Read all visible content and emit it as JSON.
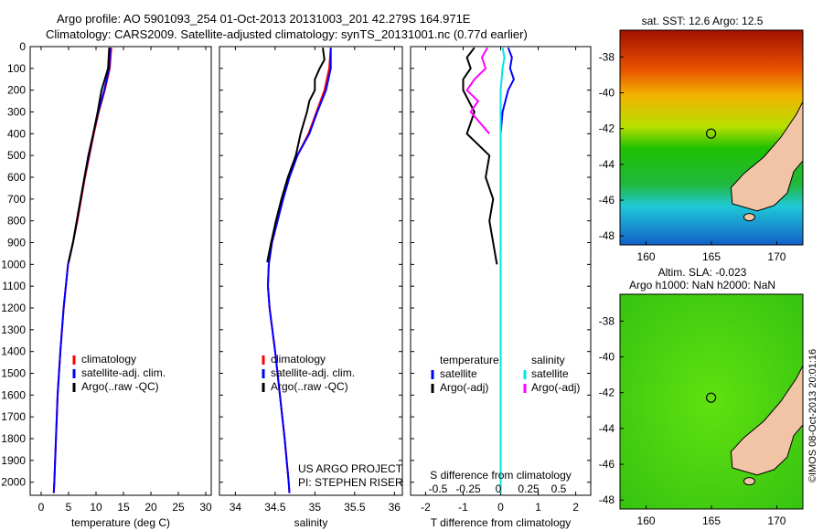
{
  "header": {
    "line1": "Argo profile: AO 5901093_254 01-Oct-2013 20131003_201 42.279S 164.971E",
    "line2": "Climatology: CARS2009. Satellite-adjusted climatology: synTS_20131001.nc (0.77d earlier)"
  },
  "chart_data": [
    {
      "type": "line",
      "name": "temperature",
      "xlabel": "temperature (deg C)",
      "ylabel": "",
      "xlim": [
        -2,
        31
      ],
      "ylim": [
        0,
        2060
      ],
      "x_ticks": [
        "0",
        "5",
        "10",
        "15",
        "20",
        "25",
        "30"
      ],
      "x_tick_values": [
        0,
        5,
        10,
        15,
        20,
        25,
        30
      ],
      "y_ticks": [
        "0",
        "100",
        "200",
        "300",
        "400",
        "500",
        "600",
        "700",
        "800",
        "900",
        "1000",
        "1100",
        "1200",
        "1300",
        "1400",
        "1500",
        "1600",
        "1700",
        "1800",
        "1900",
        "2000"
      ],
      "y_tick_values": [
        0,
        100,
        200,
        300,
        400,
        500,
        600,
        700,
        800,
        900,
        1000,
        1100,
        1200,
        1300,
        1400,
        1500,
        1600,
        1700,
        1800,
        1900,
        2000
      ],
      "series": [
        {
          "name": "climatology",
          "color": "#ff0000",
          "depth": [
            5,
            100,
            200,
            300,
            400,
            500,
            600,
            700,
            800,
            900,
            1000,
            1200,
            1400,
            1600,
            1800,
            2000,
            2050
          ],
          "values": [
            12.8,
            12.5,
            11.6,
            10.5,
            9.6,
            8.8,
            8.0,
            7.3,
            6.6,
            5.8,
            4.9,
            4.1,
            3.5,
            3.0,
            2.7,
            2.4,
            2.3
          ]
        },
        {
          "name": "satellite-adj. clim.",
          "color": "#0000ff",
          "depth": [
            5,
            100,
            200,
            300,
            400,
            500,
            600,
            700,
            800,
            900,
            1000,
            1200,
            1400,
            1600,
            1800,
            2000,
            2050
          ],
          "values": [
            12.6,
            12.4,
            11.5,
            10.4,
            9.5,
            8.7,
            7.9,
            7.2,
            6.5,
            5.8,
            4.9,
            4.1,
            3.5,
            3.0,
            2.7,
            2.4,
            2.3
          ]
        },
        {
          "name": "Argo(..raw -QC)",
          "color": "#000000",
          "depth": [
            5,
            100,
            150,
            200,
            300,
            400,
            500,
            600,
            700,
            800,
            900,
            990
          ],
          "values": [
            12.4,
            12.2,
            11.6,
            11.0,
            10.3,
            9.5,
            8.6,
            7.9,
            7.2,
            6.5,
            5.8,
            5.0
          ]
        }
      ],
      "legend": [
        "climatology",
        "satellite-adj. clim.",
        "Argo(..raw -QC)"
      ]
    },
    {
      "type": "line",
      "name": "salinity",
      "xlabel": "salinity",
      "xlim": [
        33.8,
        36.1
      ],
      "ylim": [
        0,
        2060
      ],
      "x_ticks": [
        "34",
        "34.5",
        "35",
        "35.5",
        "36"
      ],
      "x_tick_values": [
        34,
        34.5,
        35,
        35.5,
        36
      ],
      "series": [
        {
          "name": "climatology",
          "color": "#ff0000",
          "depth": [
            5,
            100,
            200,
            300,
            400,
            500,
            600,
            700,
            800,
            900,
            1000,
            1100,
            1200,
            1400,
            1600,
            1800,
            2000,
            2050
          ],
          "values": [
            35.2,
            35.18,
            35.12,
            35.02,
            34.92,
            34.78,
            34.68,
            34.6,
            34.53,
            34.46,
            34.42,
            34.41,
            34.43,
            34.5,
            34.56,
            34.62,
            34.67,
            34.68
          ]
        },
        {
          "name": "satellite-adj. clim.",
          "color": "#0000ff",
          "depth": [
            5,
            100,
            200,
            300,
            400,
            500,
            600,
            700,
            800,
            900,
            1000,
            1100,
            1200,
            1400,
            1600,
            1800,
            2000,
            2050
          ],
          "values": [
            35.2,
            35.2,
            35.14,
            35.03,
            34.93,
            34.78,
            34.68,
            34.6,
            34.53,
            34.46,
            34.42,
            34.41,
            34.43,
            34.5,
            34.56,
            34.62,
            34.67,
            34.68
          ]
        },
        {
          "name": "Argo(..raw -QC)",
          "color": "#000000",
          "depth": [
            5,
            60,
            100,
            150,
            200,
            250,
            300,
            400,
            500,
            600,
            700,
            800,
            900,
            990
          ],
          "values": [
            35.1,
            35.12,
            35.06,
            35.0,
            35.0,
            34.93,
            34.9,
            34.82,
            34.76,
            34.66,
            34.58,
            34.51,
            34.45,
            34.4
          ]
        }
      ],
      "legend": [
        "climatology",
        "satellite-adj. clim.",
        "Argo(..raw -QC)"
      ],
      "annotation": [
        "US ARGO PROJECT",
        "PI: STEPHEN RISER"
      ]
    },
    {
      "type": "line",
      "name": "difference",
      "xlabel": "T difference from climatology",
      "xlabel_top": "S difference from climatology",
      "xlim": [
        -2.4,
        2.4
      ],
      "ylim": [
        0,
        2060
      ],
      "x_ticks": [
        "-2",
        "-1",
        "0",
        "1",
        "2"
      ],
      "x_tick_values": [
        -2,
        -1,
        0,
        1,
        2
      ],
      "s_ticks": [
        "-0.5",
        "-0.25",
        "0",
        "0.25",
        "0.5"
      ],
      "series": [
        {
          "name": "satellite T",
          "color": "#0000ff",
          "depth": [
            5,
            50,
            100,
            150,
            200,
            300,
            400,
            600,
            1000,
            2050
          ],
          "values": [
            0.2,
            0.3,
            0.25,
            0.35,
            0.2,
            0.05,
            0.0,
            0.0,
            0.0,
            0.0
          ]
        },
        {
          "name": "Argo(-adj) T",
          "color": "#000000",
          "depth": [
            5,
            50,
            100,
            150,
            200,
            300,
            400,
            500,
            600,
            700,
            800,
            900,
            1000
          ],
          "values": [
            -0.7,
            -0.9,
            -0.8,
            -1.0,
            -1.0,
            -0.7,
            -0.9,
            -0.3,
            -0.4,
            -0.2,
            -0.3,
            -0.2,
            -0.1
          ]
        },
        {
          "name": "satellite S",
          "color": "#00e5e5",
          "depth": [
            5,
            50,
            100,
            200,
            400,
            1000,
            2050
          ],
          "values": [
            0.05,
            0.1,
            0.05,
            0.0,
            0.0,
            0.0,
            0.0
          ]
        },
        {
          "name": "Argo(-adj) S",
          "color": "#ff00ff",
          "depth": [
            5,
            50,
            100,
            150,
            200,
            250,
            300,
            400
          ],
          "values": [
            -0.35,
            -0.5,
            -0.4,
            -0.7,
            -0.9,
            -0.6,
            -0.8,
            -0.3
          ]
        }
      ],
      "legend_left_title": "temperature",
      "legend_right_title": "salinity",
      "legend_left": [
        "satellite",
        "Argo(-adj)"
      ],
      "legend_right": [
        "satellite",
        "Argo(-adj)"
      ]
    }
  ],
  "maps": {
    "top": {
      "title": "sat. SST: 12.6  Argo: 12.5",
      "y_ticks": [
        "-38",
        "-40",
        "-42",
        "-44",
        "-46",
        "-48"
      ],
      "x_ticks": [
        "160",
        "165",
        "170"
      ],
      "marker_lon": 164.971,
      "marker_lat": -42.279,
      "lon_range": [
        158,
        172
      ],
      "lat_range": [
        -48.5,
        -36.5
      ]
    },
    "bottom": {
      "title1": "Altim. SLA: -0.023",
      "title2": "Argo h1000: NaN h2000: NaN",
      "y_ticks": [
        "-38",
        "-40",
        "-42",
        "-44",
        "-46",
        "-48"
      ],
      "x_ticks": [
        "160",
        "165",
        "170"
      ],
      "marker_lon": 164.971,
      "marker_lat": -42.279
    },
    "stamp": "©IMOS 08-Oct-2013 20:01:16"
  }
}
